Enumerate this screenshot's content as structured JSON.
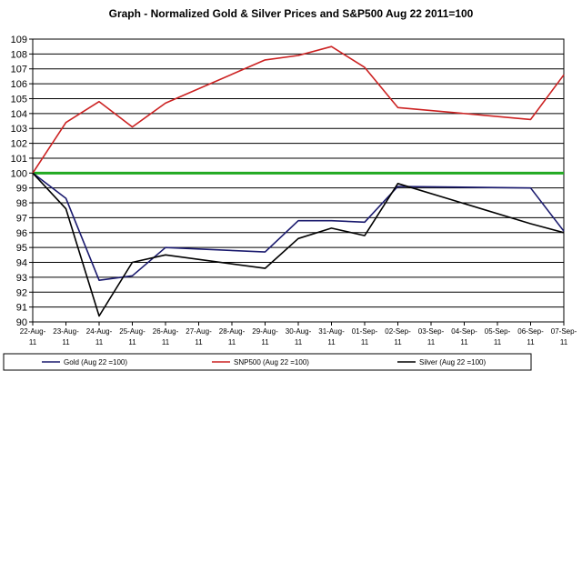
{
  "chart_data": {
    "type": "line",
    "title": "Graph - Normalized Gold & Silver Prices and  S&P500  Aug 22 2011=100",
    "xlabel": "",
    "ylabel": "",
    "ylim": [
      90,
      109
    ],
    "y_ticks": [
      "90",
      "91",
      "92",
      "93",
      "94",
      "95",
      "96",
      "97",
      "98",
      "99",
      "100",
      "101",
      "102",
      "103",
      "104",
      "105",
      "106",
      "107",
      "108",
      "109"
    ],
    "categories": [
      {
        "top": "22-Aug-",
        "bottom": "11"
      },
      {
        "top": "23-Aug-",
        "bottom": "11"
      },
      {
        "top": "24-Aug-",
        "bottom": "11"
      },
      {
        "top": "25-Aug-",
        "bottom": "11"
      },
      {
        "top": "26-Aug-",
        "bottom": "11"
      },
      {
        "top": "27-Aug-",
        "bottom": "11"
      },
      {
        "top": "28-Aug-",
        "bottom": "11"
      },
      {
        "top": "29-Aug-",
        "bottom": "11"
      },
      {
        "top": "30-Aug-",
        "bottom": "11"
      },
      {
        "top": "31-Aug-",
        "bottom": "11"
      },
      {
        "top": "01-Sep-",
        "bottom": "11"
      },
      {
        "top": "02-Sep-",
        "bottom": "11"
      },
      {
        "top": "03-Sep-",
        "bottom": "11"
      },
      {
        "top": "04-Sep-",
        "bottom": "11"
      },
      {
        "top": "05-Sep-",
        "bottom": "11"
      },
      {
        "top": "06-Sep-",
        "bottom": "11"
      },
      {
        "top": "07-Sep-",
        "bottom": "11"
      }
    ],
    "grid": true,
    "legend_position": "bottom",
    "reference_line": {
      "value": 100,
      "color": "#22aa22"
    },
    "series": [
      {
        "name": "Gold (Aug 22  =100)",
        "color": "#1a1a6e",
        "points": [
          [
            0,
            100
          ],
          [
            1,
            98.3
          ],
          [
            2,
            92.8
          ],
          [
            3,
            93.1
          ],
          [
            4,
            95
          ],
          [
            7,
            94.7
          ],
          [
            8,
            96.8
          ],
          [
            9,
            96.8
          ],
          [
            10,
            96.7
          ],
          [
            11,
            99.1
          ],
          [
            15,
            99
          ],
          [
            16,
            96.1
          ]
        ]
      },
      {
        "name": "SNP500 (Aug 22  =100)",
        "color": "#cc2222",
        "points": [
          [
            0,
            100
          ],
          [
            1,
            103.4
          ],
          [
            2,
            104.8
          ],
          [
            3,
            103.1
          ],
          [
            4,
            104.7
          ],
          [
            7,
            107.6
          ],
          [
            8,
            107.9
          ],
          [
            9,
            108.5
          ],
          [
            10,
            107.1
          ],
          [
            11,
            104.4
          ],
          [
            15,
            103.6
          ],
          [
            16,
            106.6
          ]
        ]
      },
      {
        "name": "Silver (Aug 22  =100)",
        "color": "#000000",
        "points": [
          [
            0,
            100
          ],
          [
            1,
            97.6
          ],
          [
            2,
            90.4
          ],
          [
            3,
            94
          ],
          [
            4,
            94.5
          ],
          [
            7,
            93.6
          ],
          [
            8,
            95.6
          ],
          [
            9,
            96.3
          ],
          [
            10,
            95.8
          ],
          [
            11,
            99.3
          ],
          [
            15,
            96.6
          ],
          [
            16,
            96
          ]
        ]
      }
    ]
  }
}
